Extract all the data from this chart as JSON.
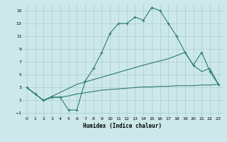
{
  "xlabel": "Humidex (Indice chaleur)",
  "bg_color": "#cce8ea",
  "grid_color": "#aacccc",
  "line_color": "#2d7a6e",
  "xlim": [
    -0.5,
    23.5
  ],
  "ylim": [
    -1.5,
    16
  ],
  "xticks": [
    0,
    1,
    2,
    3,
    4,
    5,
    6,
    7,
    8,
    9,
    10,
    11,
    12,
    13,
    14,
    15,
    16,
    17,
    18,
    19,
    20,
    21,
    22,
    23
  ],
  "yticks": [
    -1,
    1,
    3,
    5,
    7,
    9,
    11,
    13,
    15
  ],
  "line1_x": [
    0,
    1,
    2,
    3,
    4,
    5,
    6,
    7,
    8,
    9,
    10,
    11,
    12,
    13,
    14,
    15,
    16,
    17,
    18,
    19,
    20,
    21,
    22,
    23
  ],
  "line1_y": [
    3.0,
    2.0,
    1.0,
    1.5,
    1.5,
    -0.5,
    -0.5,
    4.0,
    6.0,
    8.5,
    11.5,
    13.0,
    13.0,
    14.0,
    13.5,
    15.5,
    15.0,
    13.0,
    11.0,
    8.5,
    6.5,
    8.5,
    5.5,
    3.5
  ],
  "line2_x": [
    0,
    1,
    2,
    3,
    4,
    5,
    6,
    7,
    8,
    9,
    10,
    11,
    12,
    13,
    14,
    15,
    16,
    17,
    18,
    19,
    20,
    21,
    22,
    23
  ],
  "line2_y": [
    3.0,
    2.0,
    1.0,
    1.5,
    1.5,
    1.7,
    2.0,
    2.2,
    2.4,
    2.6,
    2.7,
    2.8,
    2.9,
    3.0,
    3.1,
    3.1,
    3.2,
    3.2,
    3.3,
    3.3,
    3.3,
    3.4,
    3.4,
    3.5
  ],
  "line3_x": [
    0,
    2,
    6,
    10,
    14,
    17,
    19,
    20,
    21,
    22,
    23
  ],
  "line3_y": [
    3.0,
    1.0,
    3.5,
    5.0,
    6.5,
    7.5,
    8.5,
    6.5,
    5.5,
    6.0,
    3.5
  ]
}
